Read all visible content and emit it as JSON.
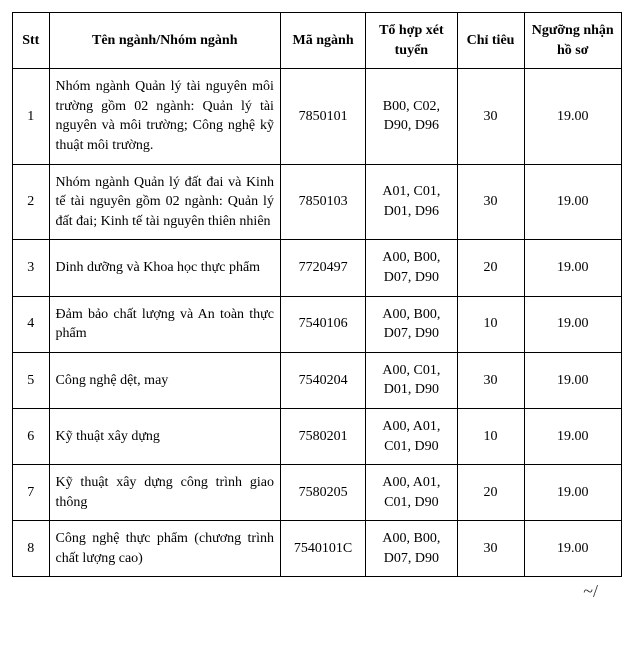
{
  "table": {
    "columns": [
      {
        "key": "stt",
        "label": "Stt"
      },
      {
        "key": "name",
        "label": "Tên ngành/Nhóm ngành"
      },
      {
        "key": "code",
        "label": "Mã ngành"
      },
      {
        "key": "combo",
        "label": "Tổ hợp xét tuyển"
      },
      {
        "key": "quota",
        "label": "Chỉ tiêu"
      },
      {
        "key": "thresh",
        "label": "Ngưỡng nhận hồ sơ"
      }
    ],
    "rows": [
      {
        "stt": "1",
        "name": "Nhóm ngành Quản lý tài nguyên môi trường gồm 02 ngành: Quản lý tài nguyên và môi trường; Công nghệ kỹ thuật môi trường.",
        "code": "7850101",
        "combo": "B00, C02, D90, D96",
        "quota": "30",
        "thresh": "19.00"
      },
      {
        "stt": "2",
        "name": "Nhóm ngành Quản lý đất đai và Kinh tế tài nguyên gồm 02 ngành: Quản lý đất đai; Kinh tế tài nguyên thiên nhiên",
        "code": "7850103",
        "combo": "A01, C01, D01, D96",
        "quota": "30",
        "thresh": "19.00"
      },
      {
        "stt": "3",
        "name": "Dinh dưỡng và Khoa học thực phẩm",
        "code": "7720497",
        "combo": "A00, B00, D07, D90",
        "quota": "20",
        "thresh": "19.00"
      },
      {
        "stt": "4",
        "name": "Đảm bảo chất lượng và An toàn thực phẩm",
        "code": "7540106",
        "combo": "A00, B00, D07, D90",
        "quota": "10",
        "thresh": "19.00"
      },
      {
        "stt": "5",
        "name": "Công nghệ dệt, may",
        "code": "7540204",
        "combo": "A00, C01, D01, D90",
        "quota": "30",
        "thresh": "19.00"
      },
      {
        "stt": "6",
        "name": "Kỹ thuật xây dựng",
        "code": "7580201",
        "combo": "A00, A01, C01, D90",
        "quota": "10",
        "thresh": "19.00"
      },
      {
        "stt": "7",
        "name": "Kỹ thuật xây dựng công trình giao thông",
        "code": "7580205",
        "combo": "A00, A01, C01, D90",
        "quota": "20",
        "thresh": "19.00"
      },
      {
        "stt": "8",
        "name": "Công nghệ thực phẩm (chương trình chất lượng cao)",
        "code": "7540101C",
        "combo": "A00, B00, D07, D90",
        "quota": "30",
        "thresh": "19.00"
      }
    ]
  },
  "signature_mark": "~/"
}
